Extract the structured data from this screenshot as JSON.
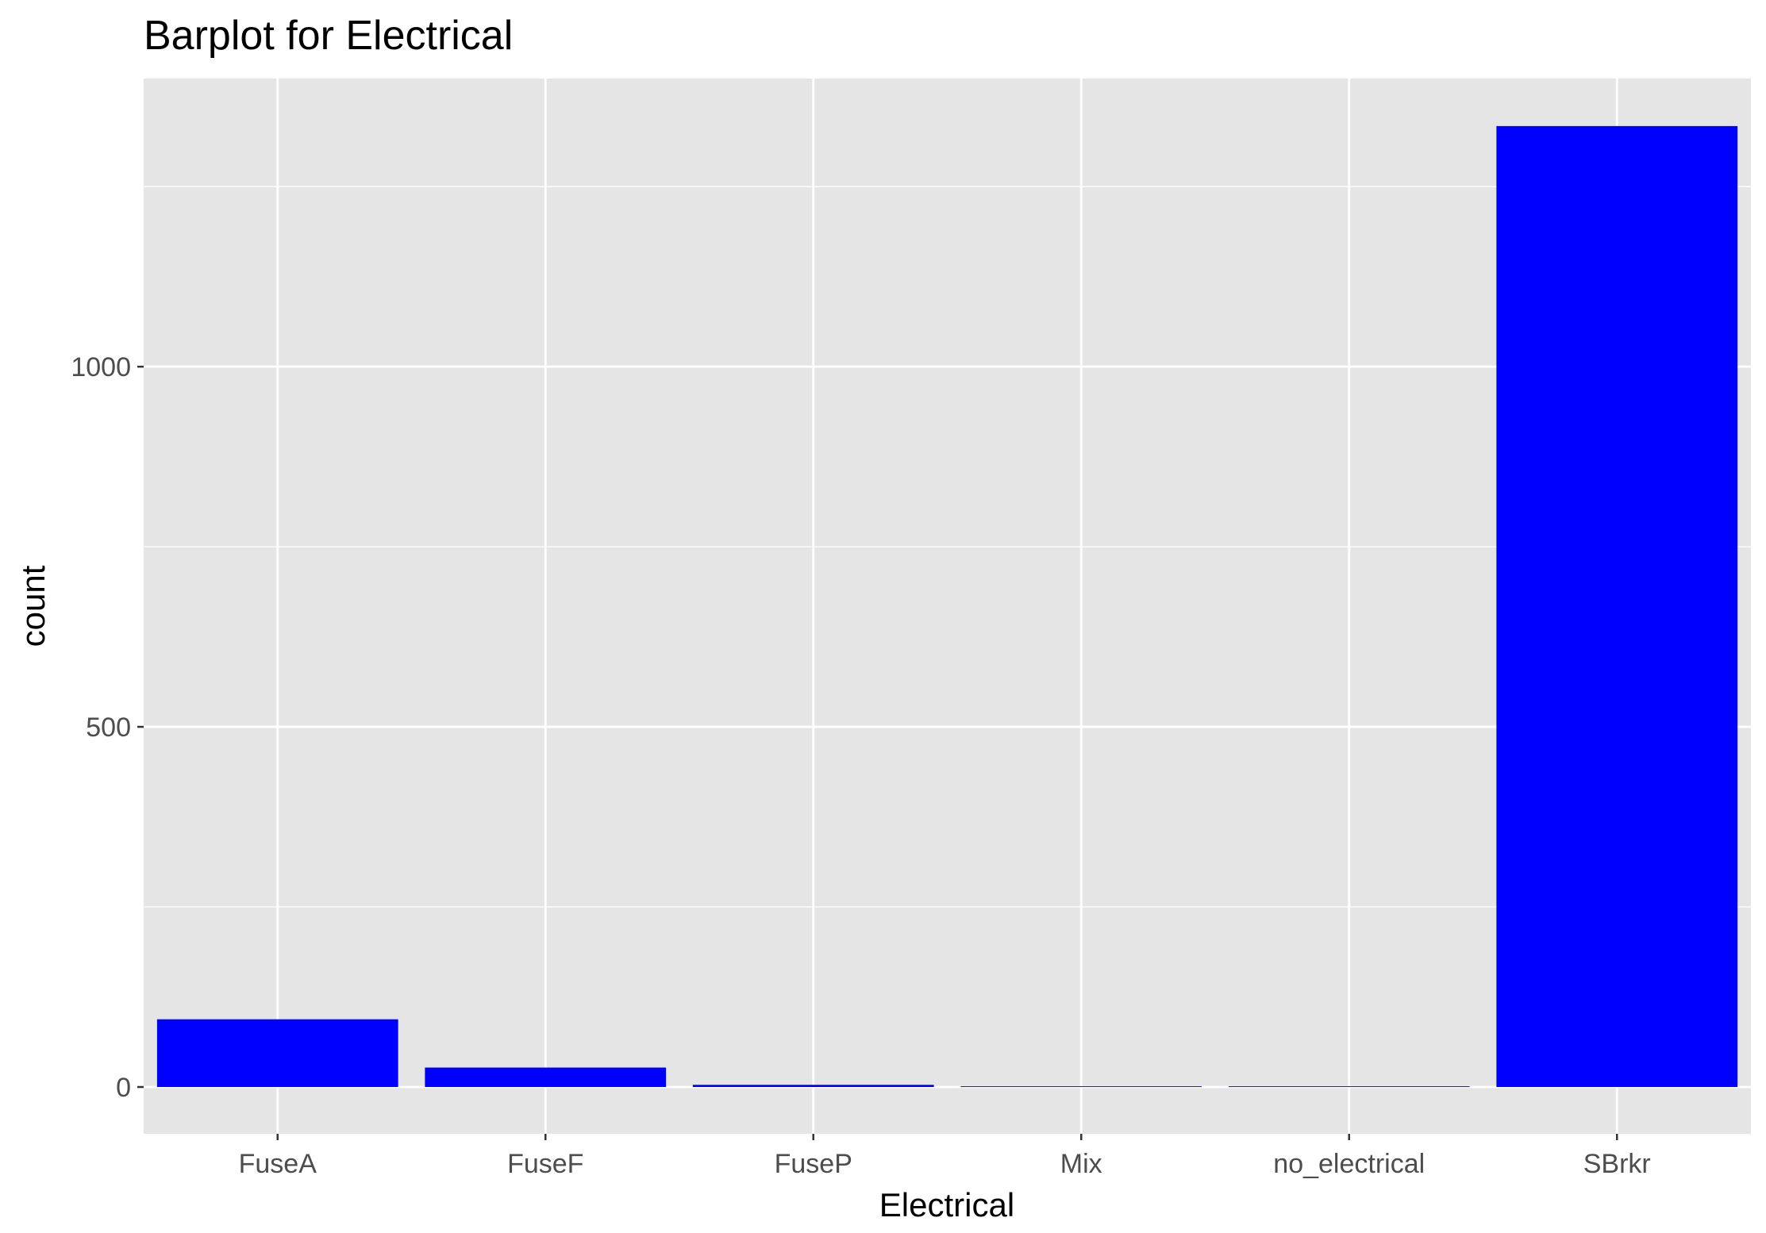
{
  "chart_data": {
    "type": "bar",
    "title": "Barplot for Electrical",
    "xlabel": "Electrical",
    "ylabel": "count",
    "categories": [
      "FuseA",
      "FuseF",
      "FuseP",
      "Mix",
      "no_electrical",
      "SBrkr"
    ],
    "values": [
      94,
      27,
      3,
      1,
      1,
      1334
    ],
    "ylim": [
      -65,
      1400
    ],
    "yticks": [
      0,
      500,
      1000
    ],
    "ytick_labels": [
      "0",
      "500",
      "1000"
    ],
    "grid": true,
    "legend": "none",
    "colors": {
      "bar": "#0000ff",
      "panel": "#e5e5e5",
      "grid": "#ffffff",
      "tick": "#333333"
    }
  }
}
